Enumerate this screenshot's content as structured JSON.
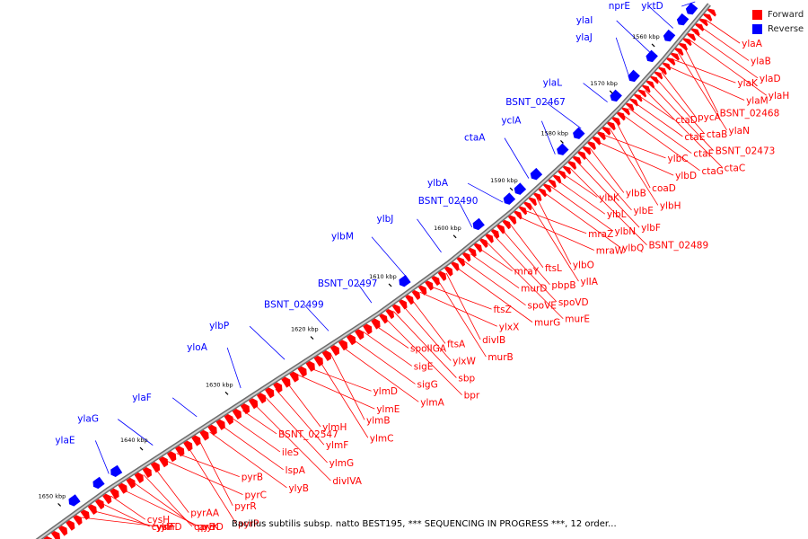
{
  "legend": {
    "items": [
      {
        "label": "Forward",
        "color": "#ff0000"
      },
      {
        "label": "Reverse",
        "color": "#0000ff"
      }
    ]
  },
  "footer": {
    "text": "Bacillus subtilis subsp. natto BEST195, *** SEQUENCING IN PROGRESS ***, 12 order..."
  },
  "colors": {
    "forward": "#ff0000",
    "reverse": "#0000ff",
    "backbone": "#888888"
  },
  "ticks": [
    "1560 kbp",
    "1570 kbp",
    "1580 kbp",
    "1590 kbp",
    "1600 kbp",
    "1610 kbp",
    "1620 kbp",
    "1630 kbp",
    "1640 kbp",
    "1650 kbp"
  ],
  "reverse_labels": [
    "yktD",
    "nprE",
    "ylaI",
    "ylaJ",
    "ylaL",
    "BSNT_02467",
    "yclA",
    "ctaA",
    "ylbA",
    "BSNT_02490",
    "ylbJ",
    "ylbM",
    "BSNT_02497",
    "BSNT_02499",
    "ylbP",
    "yloA",
    "ylaF",
    "ylaG",
    "ylaE"
  ],
  "forward_labels": [
    "ylaA",
    "ylaB",
    "ylaD",
    "ylaH",
    "BSNT_02468",
    "ylaN",
    "ylaK",
    "ylaM",
    "pycA",
    "ctaB",
    "BSNT_02473",
    "ctaC",
    "ctaD",
    "ctaE",
    "ctaF",
    "ctaG",
    "coaD",
    "ylbH",
    "ylbC",
    "ylbD",
    "ylbB",
    "ylbE",
    "ylbF",
    "BSNT_02489",
    "ylbK",
    "ylbL",
    "ylbN",
    "ylbQ",
    "ylbO",
    "ylIA",
    "mraZ",
    "mraW",
    "ftsL",
    "pbpB",
    "spoVD",
    "murE",
    "mraY",
    "murD",
    "spoVE",
    "murG",
    "divIB",
    "murB",
    "ftsZ",
    "ylxX",
    "ftsA",
    "ylxW",
    "sbp",
    "bpr",
    "spoIIGA",
    "sigE",
    "sigG",
    "ylmA",
    "ylmB",
    "ylmC",
    "ylmD",
    "ylmE",
    "ylmH",
    "ylmF",
    "ylmG",
    "divIVA",
    "BSNT_02547",
    "ileS",
    "lspA",
    "ylyB",
    "pyrR",
    "pyrP",
    "pyrB",
    "pyrC",
    "pyrAA",
    "carB",
    "pyrK",
    "pyrD",
    "cysH",
    "cysP",
    "ylnF",
    "ylnD"
  ]
}
